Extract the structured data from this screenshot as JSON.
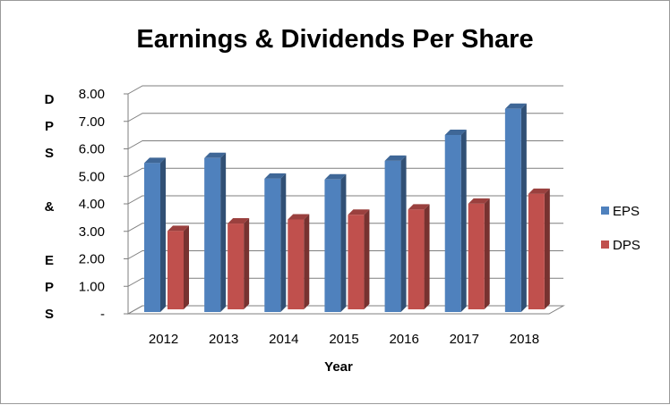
{
  "chart_data": {
    "type": "bar",
    "title": "Earnings & Dividends Per Share",
    "xlabel": "Year",
    "ylabel": "DPS & EPS",
    "categories": [
      "2012",
      "2013",
      "2014",
      "2015",
      "2016",
      "2017",
      "2018"
    ],
    "series": [
      {
        "name": "EPS",
        "color": "#4F81BD",
        "values": [
          5.42,
          5.6,
          4.85,
          4.82,
          5.5,
          6.44,
          7.39
        ]
      },
      {
        "name": "DPS",
        "color": "#C0504D",
        "values": [
          2.85,
          3.12,
          3.27,
          3.44,
          3.63,
          3.84,
          4.2
        ]
      }
    ],
    "ylim": [
      0,
      8
    ],
    "yticks": [
      "-",
      "1.00",
      "2.00",
      "3.00",
      "4.00",
      "5.00",
      "6.00",
      "7.00",
      "8.00"
    ],
    "grid": true,
    "legend_position": "right"
  }
}
